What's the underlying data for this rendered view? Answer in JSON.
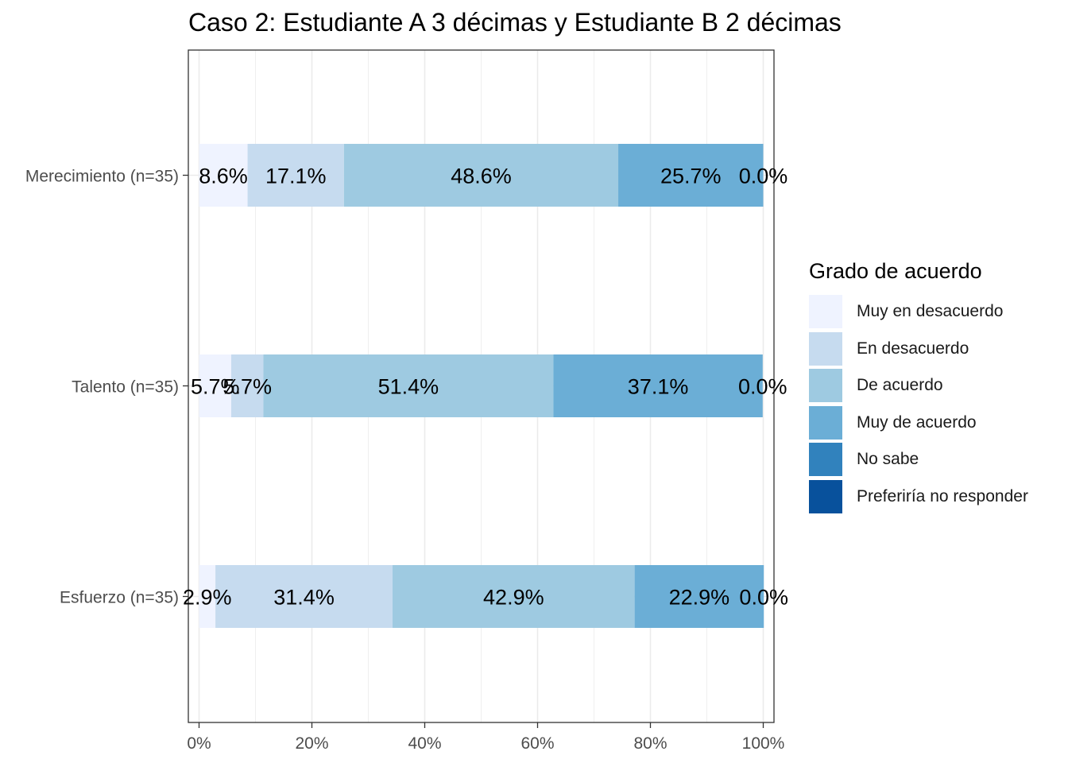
{
  "chart_data": {
    "type": "bar",
    "orientation": "horizontal",
    "stacked": true,
    "title": "Caso 2: Estudiante A 3 décimas y Estudiante B 2 décimas",
    "xlabel": "",
    "ylabel": "",
    "xlim": [
      0,
      100
    ],
    "x_ticks": [
      "0%",
      "20%",
      "40%",
      "60%",
      "80%",
      "100%"
    ],
    "categories": [
      "Merecimiento (n=35)",
      "Talento (n=35)",
      "Esfuerzo (n=35)"
    ],
    "series": [
      {
        "name": "Muy en desacuerdo",
        "color": "#eff3ff",
        "values": [
          8.6,
          5.7,
          2.9
        ],
        "labels": [
          "8.6%",
          "5.7%",
          "2.9%"
        ]
      },
      {
        "name": "En desacuerdo",
        "color": "#c6dbef",
        "values": [
          17.1,
          5.7,
          31.4
        ],
        "labels": [
          "17.1%",
          "5.7%",
          "31.4%"
        ]
      },
      {
        "name": "De acuerdo",
        "color": "#9ecae1",
        "values": [
          48.6,
          51.4,
          42.9
        ],
        "labels": [
          "48.6%",
          "51.4%",
          "42.9%"
        ]
      },
      {
        "name": "Muy de acuerdo",
        "color": "#6baed6",
        "values": [
          25.7,
          37.1,
          22.9
        ],
        "labels": [
          "25.7%",
          "37.1%",
          "22.9%"
        ]
      },
      {
        "name": "No sabe",
        "color": "#3182bd",
        "values": [
          0.0,
          0.0,
          0.0
        ],
        "labels": [
          "0.0%",
          "0.0%",
          "0.0%"
        ]
      },
      {
        "name": "Preferiría no responder",
        "color": "#08519c",
        "values": [
          0,
          0,
          0
        ],
        "labels": []
      }
    ],
    "legend": {
      "title": "Grado de acuerdo",
      "position": "right"
    },
    "grid": true
  }
}
